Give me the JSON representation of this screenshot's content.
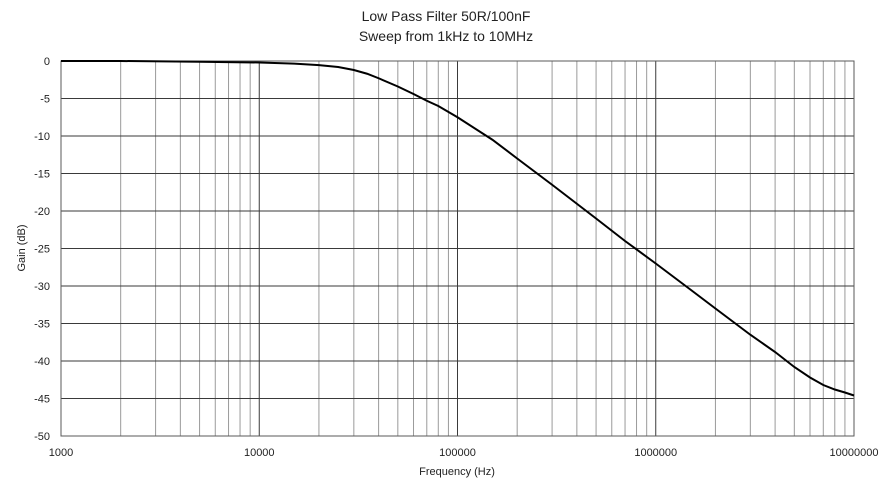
{
  "chart_data": {
    "type": "line",
    "title": "Low Pass Filter 50R/100nF",
    "subtitle": "Sweep from  1kHz to 10MHz",
    "xlabel": "Frequency (Hz)",
    "ylabel": "Gain (dB)",
    "x_scale": "log",
    "xlim": [
      1000,
      10000000
    ],
    "ylim": [
      -50,
      0
    ],
    "x_ticks": [
      "1000",
      "10000",
      "100000",
      "1000000",
      "10000000"
    ],
    "y_ticks": [
      "0",
      "-5",
      "-10",
      "-15",
      "-20",
      "-25",
      "-30",
      "-35",
      "-40",
      "-45",
      "-50"
    ],
    "grid": true,
    "legend": "none",
    "line_color": "#000000",
    "series": [
      {
        "x": [
          1000,
          2000,
          5000,
          10000,
          15000,
          20000,
          25000,
          30000,
          35000,
          40000,
          50000,
          60000,
          70000,
          80000,
          100000,
          150000,
          200000,
          300000,
          500000,
          700000,
          1000000,
          1500000,
          2000000,
          3000000,
          4000000,
          5000000,
          6000000,
          7000000,
          8000000,
          9000000,
          10000000
        ],
        "y": [
          0,
          0,
          -0.1,
          -0.2,
          -0.35,
          -0.55,
          -0.8,
          -1.2,
          -1.7,
          -2.3,
          -3.4,
          -4.4,
          -5.3,
          -6.0,
          -7.5,
          -10.5,
          -13.0,
          -16.5,
          -21.0,
          -24.0,
          -27.0,
          -30.5,
          -33.0,
          -36.5,
          -38.8,
          -40.8,
          -42.2,
          -43.2,
          -43.8,
          -44.2,
          -44.6
        ]
      }
    ]
  }
}
